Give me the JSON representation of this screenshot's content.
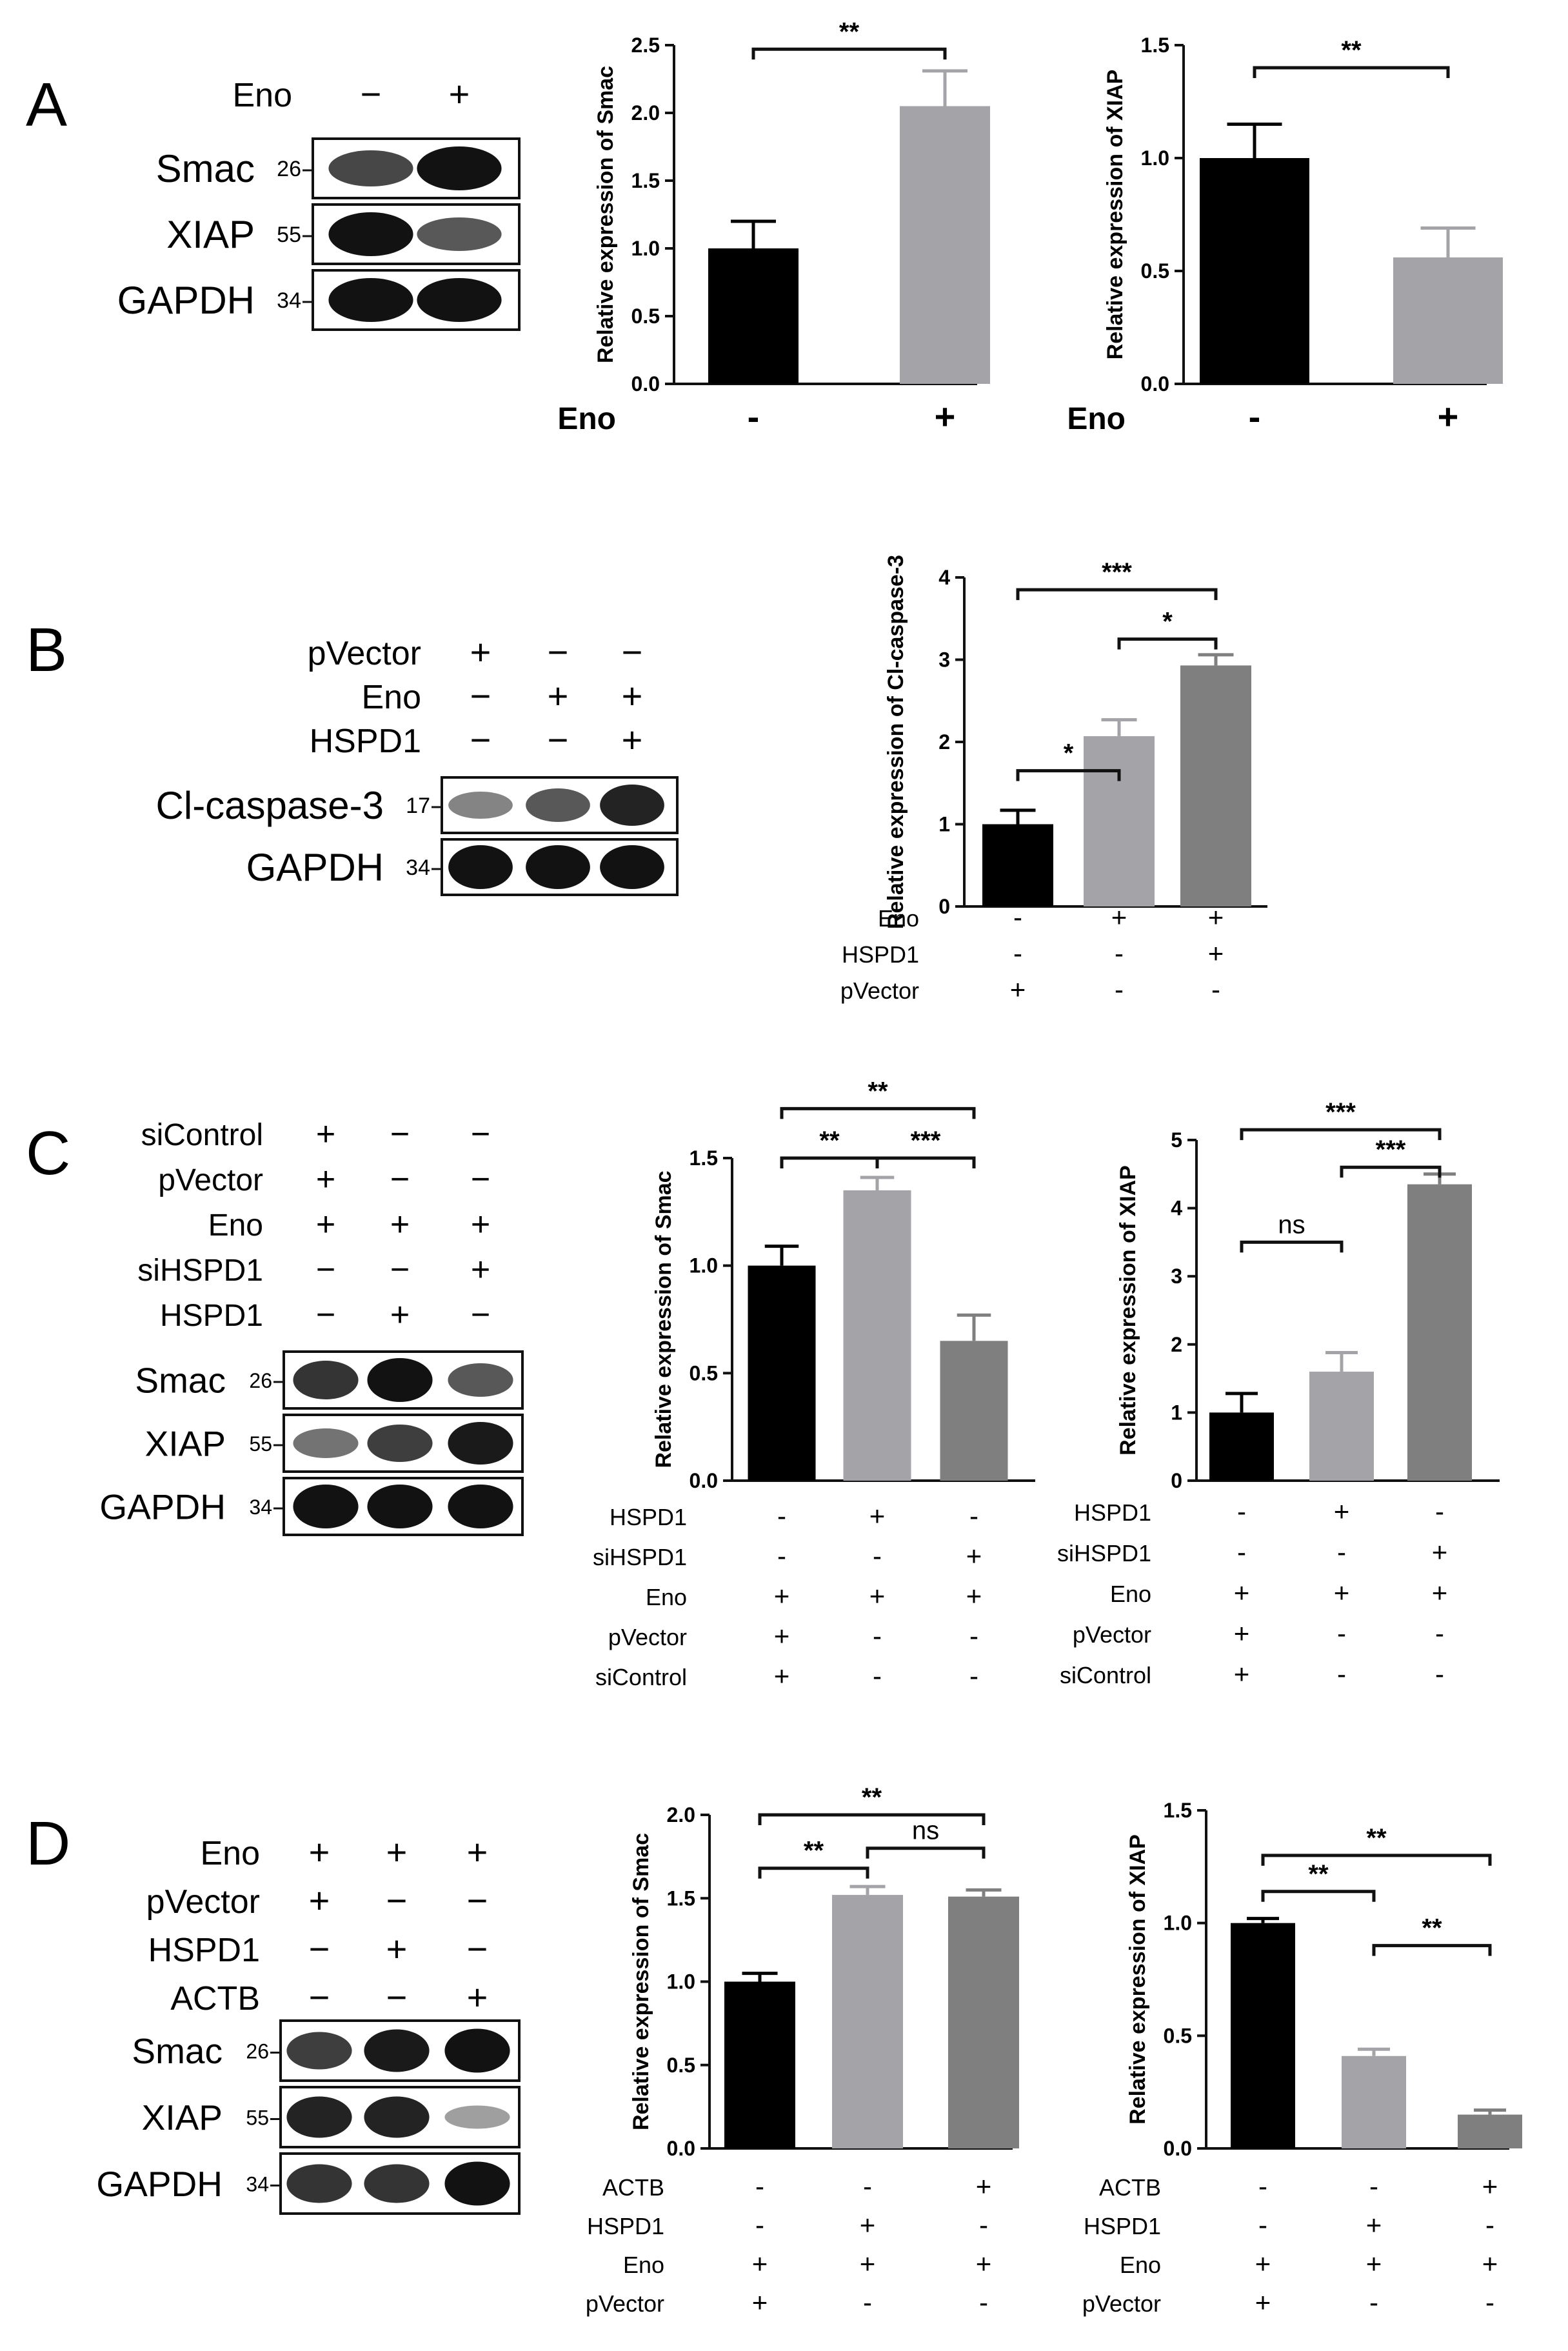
{
  "panels": [
    {
      "letter": "A",
      "blot": {
        "conditions": [
          {
            "name": "Eno",
            "values": [
              "−",
              "+"
            ]
          }
        ],
        "bands": [
          {
            "label": "Smac",
            "mw": "26",
            "intensity": [
              0.7,
              1.0
            ]
          },
          {
            "label": "XIAP",
            "mw": "55",
            "intensity": [
              1.0,
              0.6
            ]
          },
          {
            "label": "GAPDH",
            "mw": "34",
            "intensity": [
              1.0,
              1.0
            ]
          }
        ]
      },
      "charts": [
        {
          "type": "bar",
          "ylabel": "Relative expression of Smac",
          "ylim": [
            0,
            2.5
          ],
          "yticks": [
            "0.0",
            "0.5",
            "1.0",
            "1.5",
            "2.0",
            "2.5"
          ],
          "values": [
            1.0,
            2.05
          ],
          "errors": [
            0.2,
            0.26
          ],
          "colors": [
            "#000000",
            "#a3a3a8"
          ],
          "conditions": [
            {
              "name": "Eno",
              "values": [
                "-",
                "+"
              ]
            }
          ],
          "annotations": [
            {
              "from": 0,
              "to": 1,
              "y": 2.47,
              "text": "**"
            }
          ]
        },
        {
          "type": "bar",
          "ylabel": "Relative expression of XIAP",
          "ylim": [
            0,
            1.5
          ],
          "yticks": [
            "0.0",
            "0.5",
            "1.0",
            "1.5"
          ],
          "values": [
            1.0,
            0.56
          ],
          "errors": [
            0.15,
            0.13
          ],
          "colors": [
            "#000000",
            "#a3a3a8"
          ],
          "conditions": [
            {
              "name": "Eno",
              "values": [
                "-",
                "+"
              ]
            }
          ],
          "annotations": [
            {
              "from": 0,
              "to": 1,
              "y": 1.4,
              "text": "**"
            }
          ]
        }
      ]
    },
    {
      "letter": "B",
      "blot": {
        "conditions": [
          {
            "name": "pVector",
            "values": [
              "+",
              "−",
              "−"
            ]
          },
          {
            "name": "Eno",
            "values": [
              "−",
              "+",
              "+"
            ]
          },
          {
            "name": "HSPD1",
            "values": [
              "−",
              "−",
              "+"
            ]
          }
        ],
        "bands": [
          {
            "label": "Cl-caspase-3",
            "mw": "17",
            "intensity": [
              0.35,
              0.6,
              0.9
            ]
          },
          {
            "label": "GAPDH",
            "mw": "34",
            "intensity": [
              1.0,
              1.0,
              1.0
            ]
          }
        ]
      },
      "charts": [
        {
          "type": "bar",
          "ylabel": "Relative expression of Cl-caspase-3",
          "ylim": [
            0,
            4
          ],
          "yticks": [
            "0",
            "1",
            "2",
            "3",
            "4"
          ],
          "values": [
            1.0,
            2.07,
            2.93
          ],
          "errors": [
            0.17,
            0.2,
            0.13
          ],
          "colors": [
            "#000000",
            "#a3a3a8",
            "#7f7f7f"
          ],
          "conditions": [
            {
              "name": "Eno",
              "values": [
                "-",
                "+",
                "+"
              ]
            },
            {
              "name": "HSPD1",
              "values": [
                "-",
                "-",
                "+"
              ]
            },
            {
              "name": "pVector",
              "values": [
                "+",
                "-",
                "-"
              ]
            }
          ],
          "annotations": [
            {
              "from": 0,
              "to": 1,
              "y": 1.65,
              "text": "*"
            },
            {
              "from": 1,
              "to": 2,
              "y": 3.25,
              "text": "*"
            },
            {
              "from": 0,
              "to": 2,
              "y": 3.85,
              "text": "***"
            }
          ]
        }
      ]
    },
    {
      "letter": "C",
      "blot": {
        "conditions": [
          {
            "name": "siControl",
            "values": [
              "+",
              "−",
              "−"
            ]
          },
          {
            "name": "pVector",
            "values": [
              "+",
              "−",
              "−"
            ]
          },
          {
            "name": "Eno",
            "values": [
              "+",
              "+",
              "+"
            ]
          },
          {
            "name": "siHSPD1",
            "values": [
              "−",
              "−",
              "+"
            ]
          },
          {
            "name": "HSPD1",
            "values": [
              "−",
              "+",
              "−"
            ]
          }
        ],
        "bands": [
          {
            "label": "Smac",
            "mw": "26",
            "intensity": [
              0.8,
              1.0,
              0.6
            ]
          },
          {
            "label": "XIAP",
            "mw": "55",
            "intensity": [
              0.45,
              0.75,
              0.95
            ]
          },
          {
            "label": "GAPDH",
            "mw": "34",
            "intensity": [
              1.0,
              1.0,
              1.0
            ]
          }
        ]
      },
      "charts": [
        {
          "type": "bar",
          "ylabel": "Relative expression of Smac",
          "ylim": [
            0,
            1.5
          ],
          "yticks": [
            "0.0",
            "0.5",
            "1.0",
            "1.5"
          ],
          "values": [
            1.0,
            1.35,
            0.65
          ],
          "errors": [
            0.09,
            0.06,
            0.12
          ],
          "colors": [
            "#000000",
            "#a3a3a8",
            "#7f7f7f"
          ],
          "conditions": [
            {
              "name": "HSPD1",
              "values": [
                "-",
                "+",
                "-"
              ]
            },
            {
              "name": "siHSPD1",
              "values": [
                "-",
                "-",
                "+"
              ]
            },
            {
              "name": "Eno",
              "values": [
                "+",
                "+",
                "+"
              ]
            },
            {
              "name": "pVector",
              "values": [
                "+",
                "-",
                "-"
              ]
            },
            {
              "name": "siControl",
              "values": [
                "+",
                "-",
                "-"
              ]
            }
          ],
          "annotations": [
            {
              "from": 0,
              "to": 1,
              "y": 1.5,
              "text": "**"
            },
            {
              "from": 1,
              "to": 2,
              "y": 1.5,
              "text": "***"
            },
            {
              "from": 0,
              "to": 2,
              "y": 1.73,
              "text": "**"
            }
          ]
        },
        {
          "type": "bar",
          "ylabel": "Relative expression of XIAP",
          "ylim": [
            0,
            5
          ],
          "yticks": [
            "0",
            "1",
            "2",
            "3",
            "4",
            "5"
          ],
          "values": [
            1.0,
            1.6,
            4.35
          ],
          "errors": [
            0.28,
            0.28,
            0.15
          ],
          "colors": [
            "#000000",
            "#a3a3a8",
            "#7f7f7f"
          ],
          "conditions": [
            {
              "name": "HSPD1",
              "values": [
                "-",
                "+",
                "-"
              ]
            },
            {
              "name": "siHSPD1",
              "values": [
                "-",
                "-",
                "+"
              ]
            },
            {
              "name": "Eno",
              "values": [
                "+",
                "+",
                "+"
              ]
            },
            {
              "name": "pVector",
              "values": [
                "+",
                "-",
                "-"
              ]
            },
            {
              "name": "siControl",
              "values": [
                "+",
                "-",
                "-"
              ]
            }
          ],
          "annotations": [
            {
              "from": 0,
              "to": 1,
              "y": 3.5,
              "text": "ns"
            },
            {
              "from": 1,
              "to": 2,
              "y": 4.6,
              "text": "***"
            },
            {
              "from": 0,
              "to": 2,
              "y": 5.15,
              "text": "***"
            }
          ]
        }
      ]
    },
    {
      "letter": "D",
      "blot": {
        "conditions": [
          {
            "name": "Eno",
            "values": [
              "+",
              "+",
              "+"
            ]
          },
          {
            "name": "pVector",
            "values": [
              "+",
              "−",
              "−"
            ]
          },
          {
            "name": "HSPD1",
            "values": [
              "−",
              "+",
              "−"
            ]
          },
          {
            "name": "ACTB",
            "values": [
              "−",
              "−",
              "+"
            ]
          }
        ],
        "bands": [
          {
            "label": "Smac",
            "mw": "26",
            "intensity": [
              0.75,
              0.95,
              1.0
            ]
          },
          {
            "label": "XIAP",
            "mw": "55",
            "intensity": [
              0.9,
              0.9,
              0.2
            ]
          },
          {
            "label": "GAPDH",
            "mw": "34",
            "intensity": [
              0.8,
              0.8,
              1.0
            ]
          }
        ]
      },
      "charts": [
        {
          "type": "bar",
          "ylabel": "Relative expression of Smac",
          "ylim": [
            0,
            2.0
          ],
          "yticks": [
            "0.0",
            "0.5",
            "1.0",
            "1.5",
            "2.0"
          ],
          "values": [
            1.0,
            1.52,
            1.51
          ],
          "errors": [
            0.05,
            0.05,
            0.04
          ],
          "colors": [
            "#000000",
            "#a3a3a8",
            "#7f7f7f"
          ],
          "conditions": [
            {
              "name": "ACTB",
              "values": [
                "-",
                "-",
                "+"
              ]
            },
            {
              "name": "HSPD1",
              "values": [
                "-",
                "+",
                "-"
              ]
            },
            {
              "name": "Eno",
              "values": [
                "+",
                "+",
                "+"
              ]
            },
            {
              "name": "pVector",
              "values": [
                "+",
                "-",
                "-"
              ]
            }
          ],
          "annotations": [
            {
              "from": 0,
              "to": 1,
              "y": 1.68,
              "text": "**"
            },
            {
              "from": 1,
              "to": 2,
              "y": 1.8,
              "text": "ns"
            },
            {
              "from": 0,
              "to": 2,
              "y": 2.0,
              "text": "**"
            }
          ]
        },
        {
          "type": "bar",
          "ylabel": "Relative expression of XIAP",
          "ylim": [
            0,
            1.5
          ],
          "yticks": [
            "0.0",
            "0.5",
            "1.0",
            "1.5"
          ],
          "values": [
            1.0,
            0.41,
            0.15
          ],
          "errors": [
            0.02,
            0.03,
            0.02
          ],
          "colors": [
            "#000000",
            "#a3a3a8",
            "#7f7f7f"
          ],
          "conditions": [
            {
              "name": "ACTB",
              "values": [
                "-",
                "-",
                "+"
              ]
            },
            {
              "name": "HSPD1",
              "values": [
                "-",
                "+",
                "-"
              ]
            },
            {
              "name": "Eno",
              "values": [
                "+",
                "+",
                "+"
              ]
            },
            {
              "name": "pVector",
              "values": [
                "+",
                "-",
                "-"
              ]
            }
          ],
          "annotations": [
            {
              "from": 0,
              "to": 1,
              "y": 1.14,
              "text": "**"
            },
            {
              "from": 1,
              "to": 2,
              "y": 0.9,
              "text": "**"
            },
            {
              "from": 0,
              "to": 2,
              "y": 1.3,
              "text": "**"
            }
          ]
        }
      ]
    }
  ]
}
